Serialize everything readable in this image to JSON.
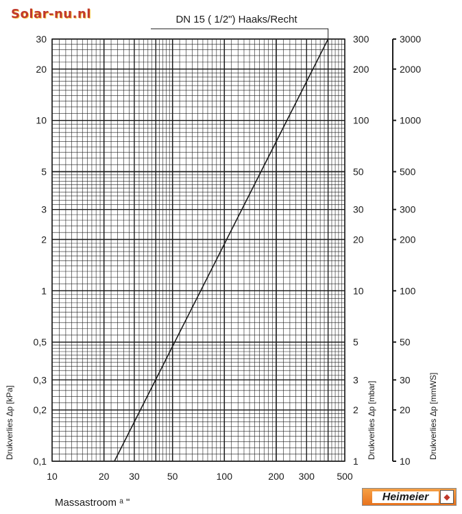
{
  "header": {
    "watermark": "Solar-nu.nl"
  },
  "chart_data": {
    "type": "line",
    "title": "DN 15 ( 1/2\") Haaks/Recht",
    "xlabel": "Massastroom ᵃ ʺ",
    "x_scale": "log",
    "y_scale": "log",
    "xlim": [
      10,
      500
    ],
    "x_ticks": [
      "10",
      "20",
      "30",
      "50",
      "100",
      "200",
      "300",
      "500"
    ],
    "y_axes": [
      {
        "label": "Drukverlies Δp [kPa]",
        "ylim": [
          0.1,
          30
        ],
        "ticks": [
          "0,1",
          "0,2",
          "0,3",
          "0,5",
          "1",
          "2",
          "3",
          "5",
          "10",
          "20",
          "30"
        ]
      },
      {
        "label": "Drukverlies Δp [mbar]",
        "ylim": [
          1,
          300
        ],
        "ticks": [
          "1",
          "2",
          "3",
          "5",
          "10",
          "20",
          "30",
          "50",
          "100",
          "200",
          "300"
        ]
      },
      {
        "label": "Drukverlies Δp [mmWS]",
        "ylim": [
          10,
          3000
        ],
        "ticks": [
          "10",
          "20",
          "30",
          "50",
          "100",
          "200",
          "300",
          "500",
          "1000",
          "2000",
          "3000"
        ]
      }
    ],
    "series": [
      {
        "x": [
          23,
          400
        ],
        "y": [
          0.1,
          30
        ],
        "color": "#1a1a1a"
      }
    ],
    "grid": true,
    "legend": "none"
  },
  "brand": {
    "name": "Heimeier",
    "emblem": "heimeier-emblem-icon"
  }
}
